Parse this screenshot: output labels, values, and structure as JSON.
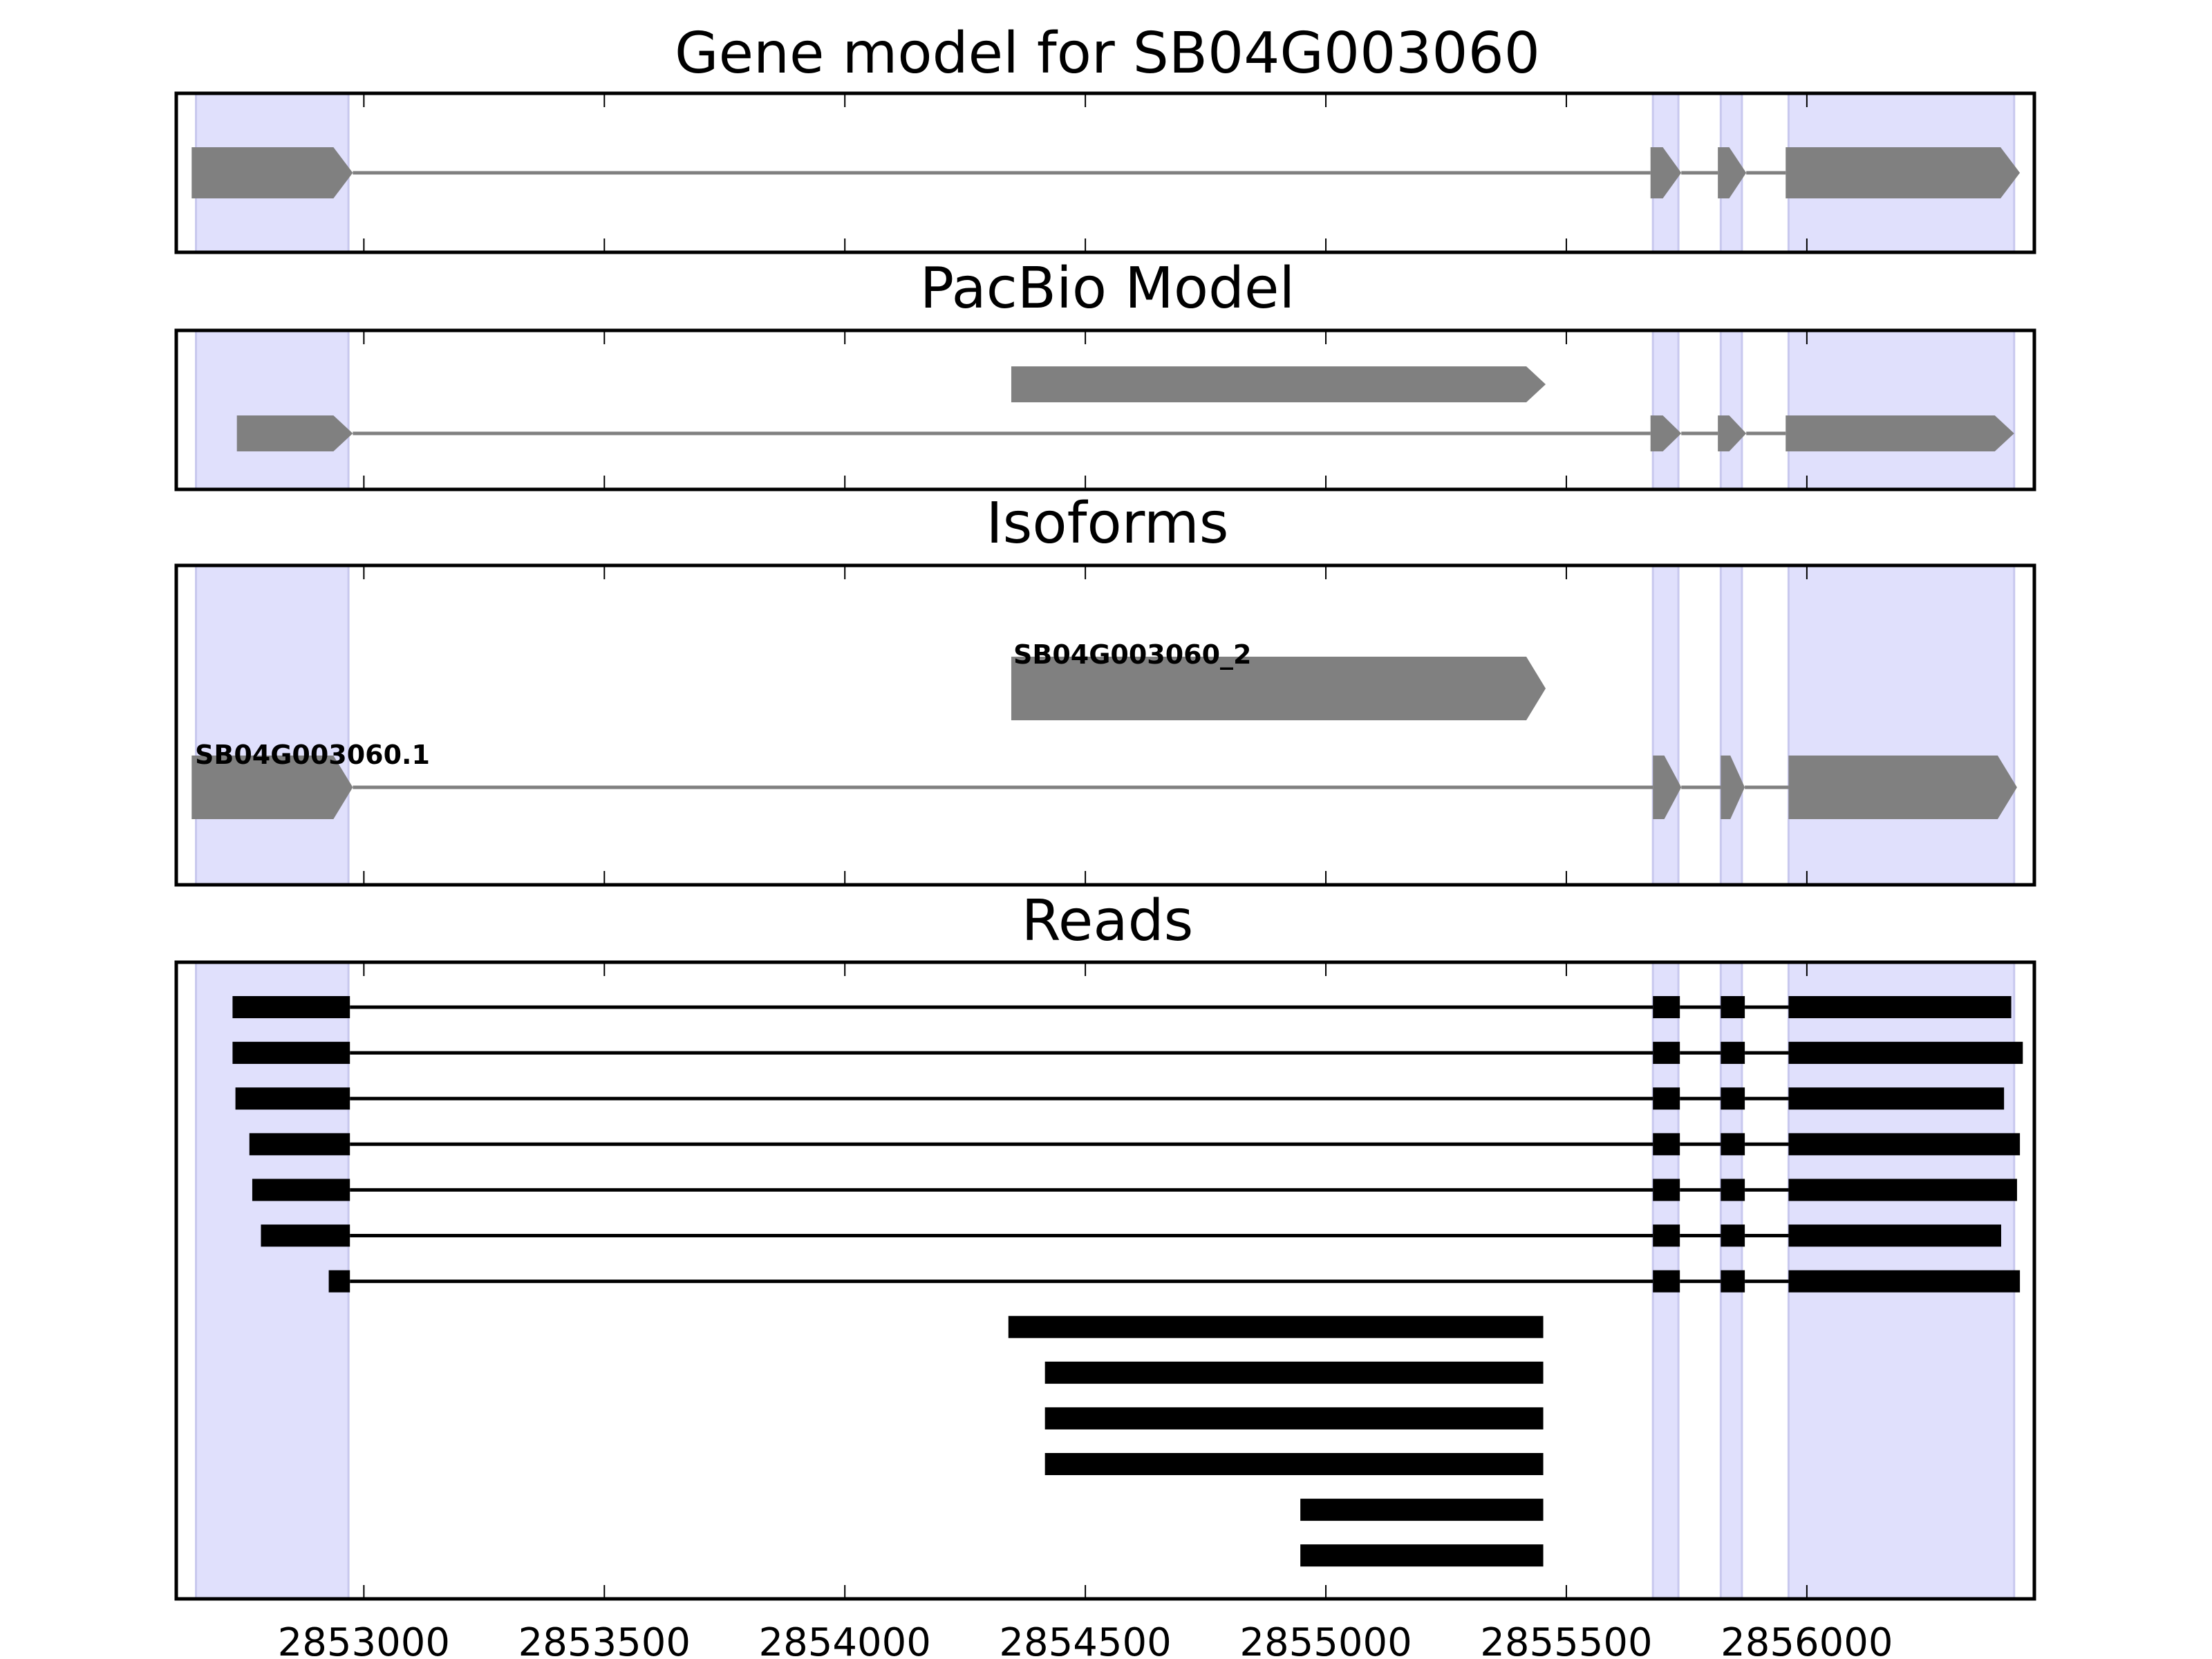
{
  "chart_data": [
    {
      "type": "gene-track",
      "title": "Gene model for SB04G003060",
      "xlim": [
        2852610,
        2856473
      ],
      "feature_color": "#808080",
      "shaded_regions": [
        [
          2852651,
          2852968
        ],
        [
          2855680,
          2855733
        ],
        [
          2855821,
          2855865
        ],
        [
          2855962,
          2856431
        ]
      ],
      "shade_color": "#e0e0fc",
      "tracks": [
        {
          "label": "",
          "exons": [
            [
              2852642,
              2852977
            ],
            [
              2855675,
              2855739
            ],
            [
              2855815,
              2855874
            ],
            [
              2855956,
              2856443
            ]
          ],
          "arrow": true
        }
      ]
    },
    {
      "type": "gene-track",
      "title": "PacBio Model",
      "xlim": [
        2852610,
        2856473
      ],
      "feature_color": "#808080",
      "shaded_regions": [
        [
          2852651,
          2852968
        ],
        [
          2855680,
          2855733
        ],
        [
          2855821,
          2855865
        ],
        [
          2855962,
          2856431
        ]
      ],
      "shade_color": "#e0e0fc",
      "tracks": [
        {
          "label": "",
          "exons": [
            [
              2852736,
              2852977
            ],
            [
              2855675,
              2855739
            ],
            [
              2855815,
              2855874
            ],
            [
              2855956,
              2856431
            ]
          ],
          "arrow": true
        },
        {
          "label": "",
          "exons": [
            [
              2854346,
              2855457
            ]
          ],
          "arrow": true
        }
      ]
    },
    {
      "type": "gene-track",
      "title": "Isoforms",
      "xlim": [
        2852610,
        2856473
      ],
      "feature_color": "#808080",
      "shaded_regions": [
        [
          2852651,
          2852968
        ],
        [
          2855680,
          2855733
        ],
        [
          2855821,
          2855865
        ],
        [
          2855962,
          2856431
        ]
      ],
      "shade_color": "#e0e0fc",
      "tracks": [
        {
          "label": "SB04G003060.1",
          "exons": [
            [
              2852642,
              2852977
            ],
            [
              2855680,
              2855739
            ],
            [
              2855821,
              2855871
            ],
            [
              2855962,
              2856437
            ]
          ],
          "arrow": true
        },
        {
          "label": "SB04G003060_2",
          "exons": [
            [
              2854346,
              2855457
            ]
          ],
          "arrow": true
        }
      ]
    },
    {
      "type": "read-track",
      "title": "Reads",
      "xlim": [
        2852610,
        2856473
      ],
      "xticks": [
        2853000,
        2853500,
        2854000,
        2854500,
        2855000,
        2855500,
        2856000
      ],
      "xtick_labels": [
        "2853000",
        "2853500",
        "2854000",
        "2854500",
        "2855000",
        "2855500",
        "2856000"
      ],
      "feature_color": "#000000",
      "shaded_regions": [
        [
          2852651,
          2852968
        ],
        [
          2855680,
          2855733
        ],
        [
          2855821,
          2855865
        ],
        [
          2855962,
          2856431
        ]
      ],
      "shade_color": "#e0e0fc",
      "reads": [
        {
          "exons": [
            [
              2852727,
              2852971
            ],
            [
              2855680,
              2855736
            ],
            [
              2855821,
              2855871
            ],
            [
              2855962,
              2856425
            ]
          ]
        },
        {
          "exons": [
            [
              2852727,
              2852971
            ],
            [
              2855680,
              2855736
            ],
            [
              2855821,
              2855871
            ],
            [
              2855962,
              2856449
            ]
          ]
        },
        {
          "exons": [
            [
              2852733,
              2852971
            ],
            [
              2855680,
              2855736
            ],
            [
              2855821,
              2855871
            ],
            [
              2855962,
              2856410
            ]
          ]
        },
        {
          "exons": [
            [
              2852762,
              2852971
            ],
            [
              2855680,
              2855736
            ],
            [
              2855821,
              2855871
            ],
            [
              2855962,
              2856443
            ]
          ]
        },
        {
          "exons": [
            [
              2852768,
              2852971
            ],
            [
              2855680,
              2855736
            ],
            [
              2855821,
              2855871
            ],
            [
              2855962,
              2856437
            ]
          ]
        },
        {
          "exons": [
            [
              2852786,
              2852971
            ],
            [
              2855680,
              2855736
            ],
            [
              2855821,
              2855871
            ],
            [
              2855962,
              2856404
            ]
          ]
        },
        {
          "exons": [
            [
              2852927,
              2852971
            ],
            [
              2855680,
              2855736
            ],
            [
              2855821,
              2855871
            ],
            [
              2855962,
              2856443
            ]
          ]
        },
        {
          "exons": [
            [
              2854340,
              2855452
            ]
          ]
        },
        {
          "exons": [
            [
              2854416,
              2855452
            ]
          ]
        },
        {
          "exons": [
            [
              2854416,
              2855452
            ]
          ]
        },
        {
          "exons": [
            [
              2854416,
              2855452
            ]
          ]
        },
        {
          "exons": [
            [
              2854947,
              2855452
            ]
          ]
        },
        {
          "exons": [
            [
              2854947,
              2855452
            ]
          ]
        }
      ]
    }
  ]
}
